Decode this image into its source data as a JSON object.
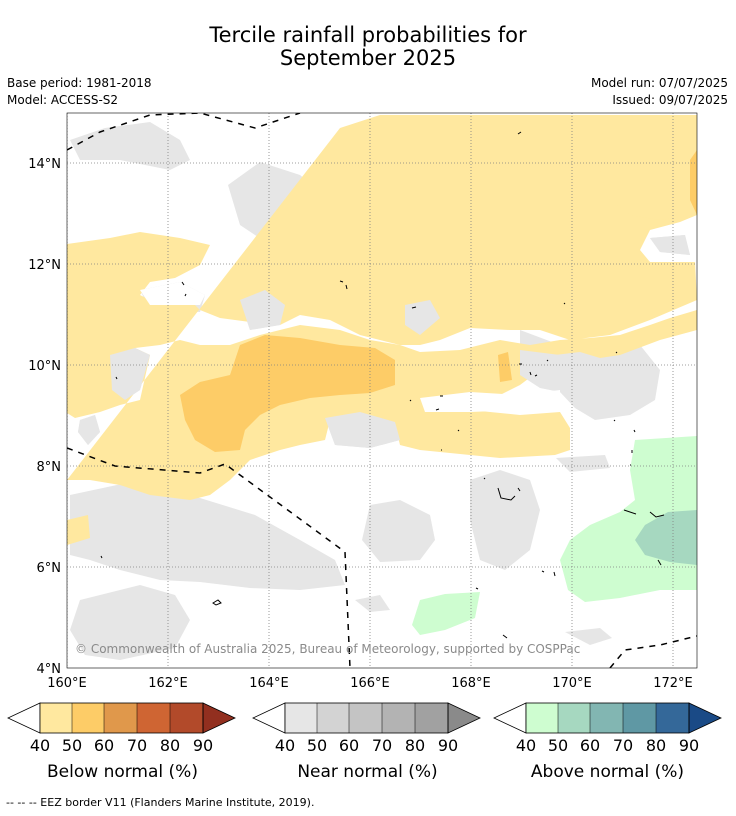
{
  "header": {
    "title_line1": "Tercile rainfall probabilities for",
    "title_line2": "September 2025",
    "base_period": "Base period: 1981-2018",
    "model": "Model: ACCESS-S2",
    "model_run": "Model run: 07/07/2025",
    "issued": "Issued: 09/07/2025"
  },
  "map": {
    "lat_labels": [
      "14°N",
      "12°N",
      "10°N",
      "8°N",
      "6°N",
      "4°N"
    ],
    "lon_labels": [
      "160°E",
      "162°E",
      "164°E",
      "166°E",
      "168°E",
      "170°E",
      "172°E"
    ],
    "copyright": "© Commonwealth of Australia 2025, Bureau of Meteorology, supported by COSPPac",
    "colors": {
      "below": [
        "#ffe89f",
        "#fdcc67",
        "#e0984b",
        "#cf6533",
        "#b24a2a",
        "#922f1f"
      ],
      "near": [
        "#e6e6e6",
        "#d3d3d3",
        "#c4c4c4",
        "#b3b3b3",
        "#a1a1a1",
        "#8a8a8a"
      ],
      "above": [
        "#cefdd0",
        "#a6d8c0",
        "#82b6b2",
        "#5f98a4",
        "#346899",
        "#1a4a86"
      ]
    }
  },
  "colorbars": [
    {
      "title": "Below normal (%)",
      "ticks": [
        "40",
        "50",
        "60",
        "70",
        "80",
        "90"
      ]
    },
    {
      "title": "Near normal (%)",
      "ticks": [
        "40",
        "50",
        "60",
        "70",
        "80",
        "90"
      ]
    },
    {
      "title": "Above normal (%)",
      "ticks": [
        "40",
        "50",
        "60",
        "70",
        "80",
        "90"
      ]
    }
  ],
  "legend_footnote": "--  --  -- EEZ border V11 (Flanders Marine Institute, 2019)."
}
